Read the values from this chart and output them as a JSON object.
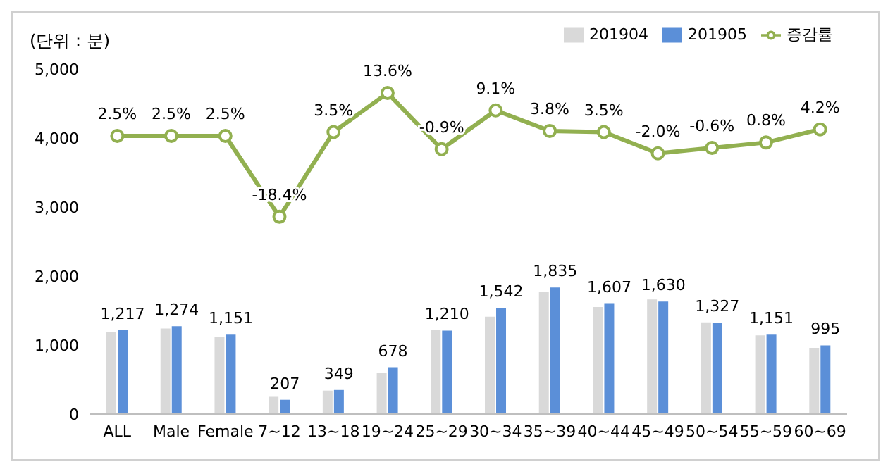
{
  "chart_data": {
    "type": "bar",
    "ylabel": "(단위 : 분)",
    "categories": [
      "ALL",
      "Male",
      "Female",
      "7~12",
      "13~18",
      "19~24",
      "25~29",
      "30~34",
      "35~39",
      "40~44",
      "45~49",
      "50~54",
      "55~59",
      "60~69"
    ],
    "series": [
      {
        "name": "201904",
        "color": "#d9d9d9",
        "values": [
          1190,
          1240,
          1120,
          250,
          340,
          600,
          1220,
          1410,
          1770,
          1550,
          1660,
          1330,
          1140,
          960
        ]
      },
      {
        "name": "201905",
        "color": "#5b8fd8",
        "values": [
          1217,
          1274,
          1151,
          207,
          349,
          678,
          1210,
          1542,
          1835,
          1607,
          1630,
          1327,
          1151,
          995
        ],
        "value_labels": [
          "1,217",
          "1,274",
          "1,151",
          "207",
          "349",
          "678",
          "1,210",
          "1,542",
          "1,835",
          "1,607",
          "1,630",
          "1,327",
          "1,151",
          "995"
        ]
      },
      {
        "name": "증감률",
        "type": "line",
        "axis": "y2",
        "color": "#92b050",
        "values": [
          2.5,
          2.5,
          2.5,
          -18.4,
          3.5,
          13.6,
          -0.9,
          9.1,
          3.8,
          3.5,
          -2.0,
          -0.6,
          0.8,
          4.2
        ],
        "value_labels": [
          "2.5%",
          "2.5%",
          "2.5%",
          "-18.4%",
          "3.5%",
          "13.6%",
          "-0.9%",
          "9.1%",
          "3.8%",
          "3.5%",
          "-2.0%",
          "-0.6%",
          "0.8%",
          "4.2%"
        ]
      }
    ],
    "ylim": [
      0,
      5000
    ],
    "yticks": [
      {
        "value": 0,
        "label": "0"
      },
      {
        "value": 1000,
        "label": "1,000"
      },
      {
        "value": 2000,
        "label": "2,000"
      },
      {
        "value": 3000,
        "label": "3,000"
      },
      {
        "value": 4000,
        "label": "4,000"
      },
      {
        "value": 5000,
        "label": "5,000"
      }
    ],
    "legend": "top right",
    "marker": "circle"
  }
}
